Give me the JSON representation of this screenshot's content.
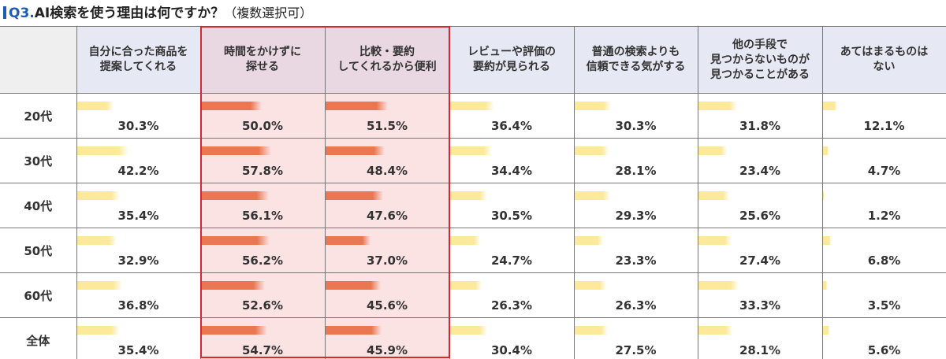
{
  "title": {
    "q": "Q3.",
    "main": "AI検索を使う理由は何ですか？",
    "sub": "（複数選択可）"
  },
  "colors": {
    "highlight_bar": "#eb7752",
    "normal_bar": "#fde99a",
    "highlight_border": "#d42a2a",
    "header_bg": "#e6e8f4",
    "highlight_bg": "#fbe3e4"
  },
  "chart_data": {
    "type": "table",
    "title": "Q3.AI検索を使う理由は何ですか？（複数選択可）",
    "columns": [
      "自分に合った商品を\n提案してくれる",
      "時間をかけずに\n探せる",
      "比較・要約\nしてくれるから便利",
      "レビューや評価の\n要約が見られる",
      "普通の検索よりも\n信頼できる気がする",
      "他の手段で\n見つからないものが\n見つかることがある",
      "あてはまるものは\nない"
    ],
    "highlighted_columns": [
      1,
      2
    ],
    "unit": "%",
    "rows": [
      {
        "label": "20代",
        "values": [
          30.3,
          50.0,
          51.5,
          36.4,
          30.3,
          31.8,
          12.1
        ]
      },
      {
        "label": "30代",
        "values": [
          42.2,
          57.8,
          48.4,
          34.4,
          28.1,
          23.4,
          4.7
        ]
      },
      {
        "label": "40代",
        "values": [
          35.4,
          56.1,
          47.6,
          30.5,
          29.3,
          25.6,
          1.2
        ]
      },
      {
        "label": "50代",
        "values": [
          32.9,
          56.2,
          37.0,
          24.7,
          23.3,
          27.4,
          6.8
        ]
      },
      {
        "label": "60代",
        "values": [
          36.8,
          52.6,
          45.6,
          26.3,
          26.3,
          33.3,
          3.5
        ]
      },
      {
        "label": "全体",
        "values": [
          35.4,
          54.7,
          45.9,
          30.4,
          27.5,
          28.1,
          5.6
        ]
      }
    ]
  }
}
